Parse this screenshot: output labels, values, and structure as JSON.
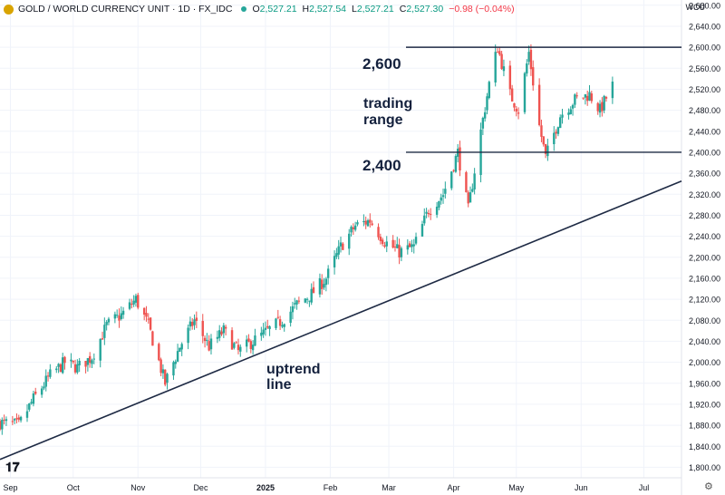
{
  "header": {
    "symbol": "GOLD / WORLD CURRENCY UNIT · 1D · FX_IDC",
    "open_label": "O",
    "open": "2,527.21",
    "high_label": "H",
    "high": "2,527.54",
    "low_label": "L",
    "low": "2,527.21",
    "close_label": "C",
    "close": "2,527.30",
    "change": "−0.98 (−0.04%)",
    "currency": "WCU"
  },
  "annotations": {
    "level_high": "2,600",
    "level_low": "2,400",
    "range_label_1": "trading",
    "range_label_2": "range",
    "trend_label_1": "uptrend",
    "trend_label_2": "line"
  },
  "icons": {
    "logo": "tradingview-logo-icon",
    "settings": "gear-icon"
  },
  "colors": {
    "up": "#26a69a",
    "down": "#ef5350",
    "annotation": "#14213d",
    "level_line": "#1e2a44"
  },
  "chart_data": {
    "type": "candlestick",
    "title": "",
    "ylim": [
      1780,
      2690
    ],
    "y_ticks": [
      1800,
      1840,
      1880,
      1920,
      1960,
      2000,
      2040,
      2080,
      2120,
      2160,
      2200,
      2240,
      2280,
      2320,
      2360,
      2400,
      2440,
      2480,
      2520,
      2560,
      2600,
      2640,
      2680
    ],
    "y_tick_labels": [
      "1,800.00",
      "1,840.00",
      "1,880.00",
      "1,920.00",
      "1,960.00",
      "2,000.00",
      "2,040.00",
      "2,080.00",
      "2,120.00",
      "2,160.00",
      "2,200.00",
      "2,240.00",
      "2,280.00",
      "2,320.00",
      "2,360.00",
      "2,400.00",
      "2,440.00",
      "2,480.00",
      "2,520.00",
      "2,560.00",
      "2,600.00",
      "2,640.00",
      "2,680.00"
    ],
    "x_range": [
      "2024-08-27",
      "2025-07-19"
    ],
    "x_ticks": [
      {
        "date": "2024-09-01",
        "label": "Sep"
      },
      {
        "date": "2024-10-01",
        "label": "Oct"
      },
      {
        "date": "2024-11-01",
        "label": "Nov"
      },
      {
        "date": "2024-12-01",
        "label": "Dec"
      },
      {
        "date": "2025-01-01",
        "label": "2025"
      },
      {
        "date": "2025-02-01",
        "label": "Feb"
      },
      {
        "date": "2025-03-01",
        "label": "Mar"
      },
      {
        "date": "2025-04-01",
        "label": "Apr"
      },
      {
        "date": "2025-05-01",
        "label": "May"
      },
      {
        "date": "2025-06-01",
        "label": "Jun"
      },
      {
        "date": "2025-07-01",
        "label": "Jul"
      }
    ],
    "horizontal_levels": [
      2600,
      2400
    ],
    "trendline": {
      "from": {
        "date": "2024-08-27",
        "value": 1815
      },
      "to": {
        "date": "2025-07-19",
        "value": 2345
      }
    },
    "close_path": [
      {
        "date": "2024-08-27",
        "close": 1885
      },
      {
        "date": "2024-09-05",
        "close": 1880
      },
      {
        "date": "2024-09-12",
        "close": 1930
      },
      {
        "date": "2024-09-20",
        "close": 1975
      },
      {
        "date": "2024-09-27",
        "close": 2000
      },
      {
        "date": "2024-10-03",
        "close": 1990
      },
      {
        "date": "2024-10-10",
        "close": 2010
      },
      {
        "date": "2024-10-17",
        "close": 2070
      },
      {
        "date": "2024-10-24",
        "close": 2090
      },
      {
        "date": "2024-10-31",
        "close": 2120
      },
      {
        "date": "2024-11-06",
        "close": 2070
      },
      {
        "date": "2024-11-14",
        "close": 1960
      },
      {
        "date": "2024-11-21",
        "close": 2030
      },
      {
        "date": "2024-11-28",
        "close": 2080
      },
      {
        "date": "2024-12-05",
        "close": 2030
      },
      {
        "date": "2024-12-12",
        "close": 2060
      },
      {
        "date": "2024-12-19",
        "close": 2020
      },
      {
        "date": "2024-12-26",
        "close": 2040
      },
      {
        "date": "2025-01-02",
        "close": 2060
      },
      {
        "date": "2025-01-09",
        "close": 2080
      },
      {
        "date": "2025-01-16",
        "close": 2110
      },
      {
        "date": "2025-01-23",
        "close": 2130
      },
      {
        "date": "2025-01-30",
        "close": 2160
      },
      {
        "date": "2025-02-06",
        "close": 2220
      },
      {
        "date": "2025-02-13",
        "close": 2260
      },
      {
        "date": "2025-02-20",
        "close": 2270
      },
      {
        "date": "2025-02-27",
        "close": 2230
      },
      {
        "date": "2025-03-06",
        "close": 2210
      },
      {
        "date": "2025-03-13",
        "close": 2220
      },
      {
        "date": "2025-03-20",
        "close": 2290
      },
      {
        "date": "2025-03-27",
        "close": 2320
      },
      {
        "date": "2025-04-03",
        "close": 2400
      },
      {
        "date": "2025-04-08",
        "close": 2290
      },
      {
        "date": "2025-04-14",
        "close": 2440
      },
      {
        "date": "2025-04-18",
        "close": 2530
      },
      {
        "date": "2025-04-22",
        "close": 2600
      },
      {
        "date": "2025-04-28",
        "close": 2510
      },
      {
        "date": "2025-05-02",
        "close": 2480
      },
      {
        "date": "2025-05-07",
        "close": 2590
      },
      {
        "date": "2025-05-12",
        "close": 2450
      },
      {
        "date": "2025-05-15",
        "close": 2390
      },
      {
        "date": "2025-05-22",
        "close": 2470
      },
      {
        "date": "2025-05-29",
        "close": 2500
      },
      {
        "date": "2025-06-05",
        "close": 2510
      },
      {
        "date": "2025-06-10",
        "close": 2480
      },
      {
        "date": "2025-06-16",
        "close": 2527
      }
    ]
  }
}
